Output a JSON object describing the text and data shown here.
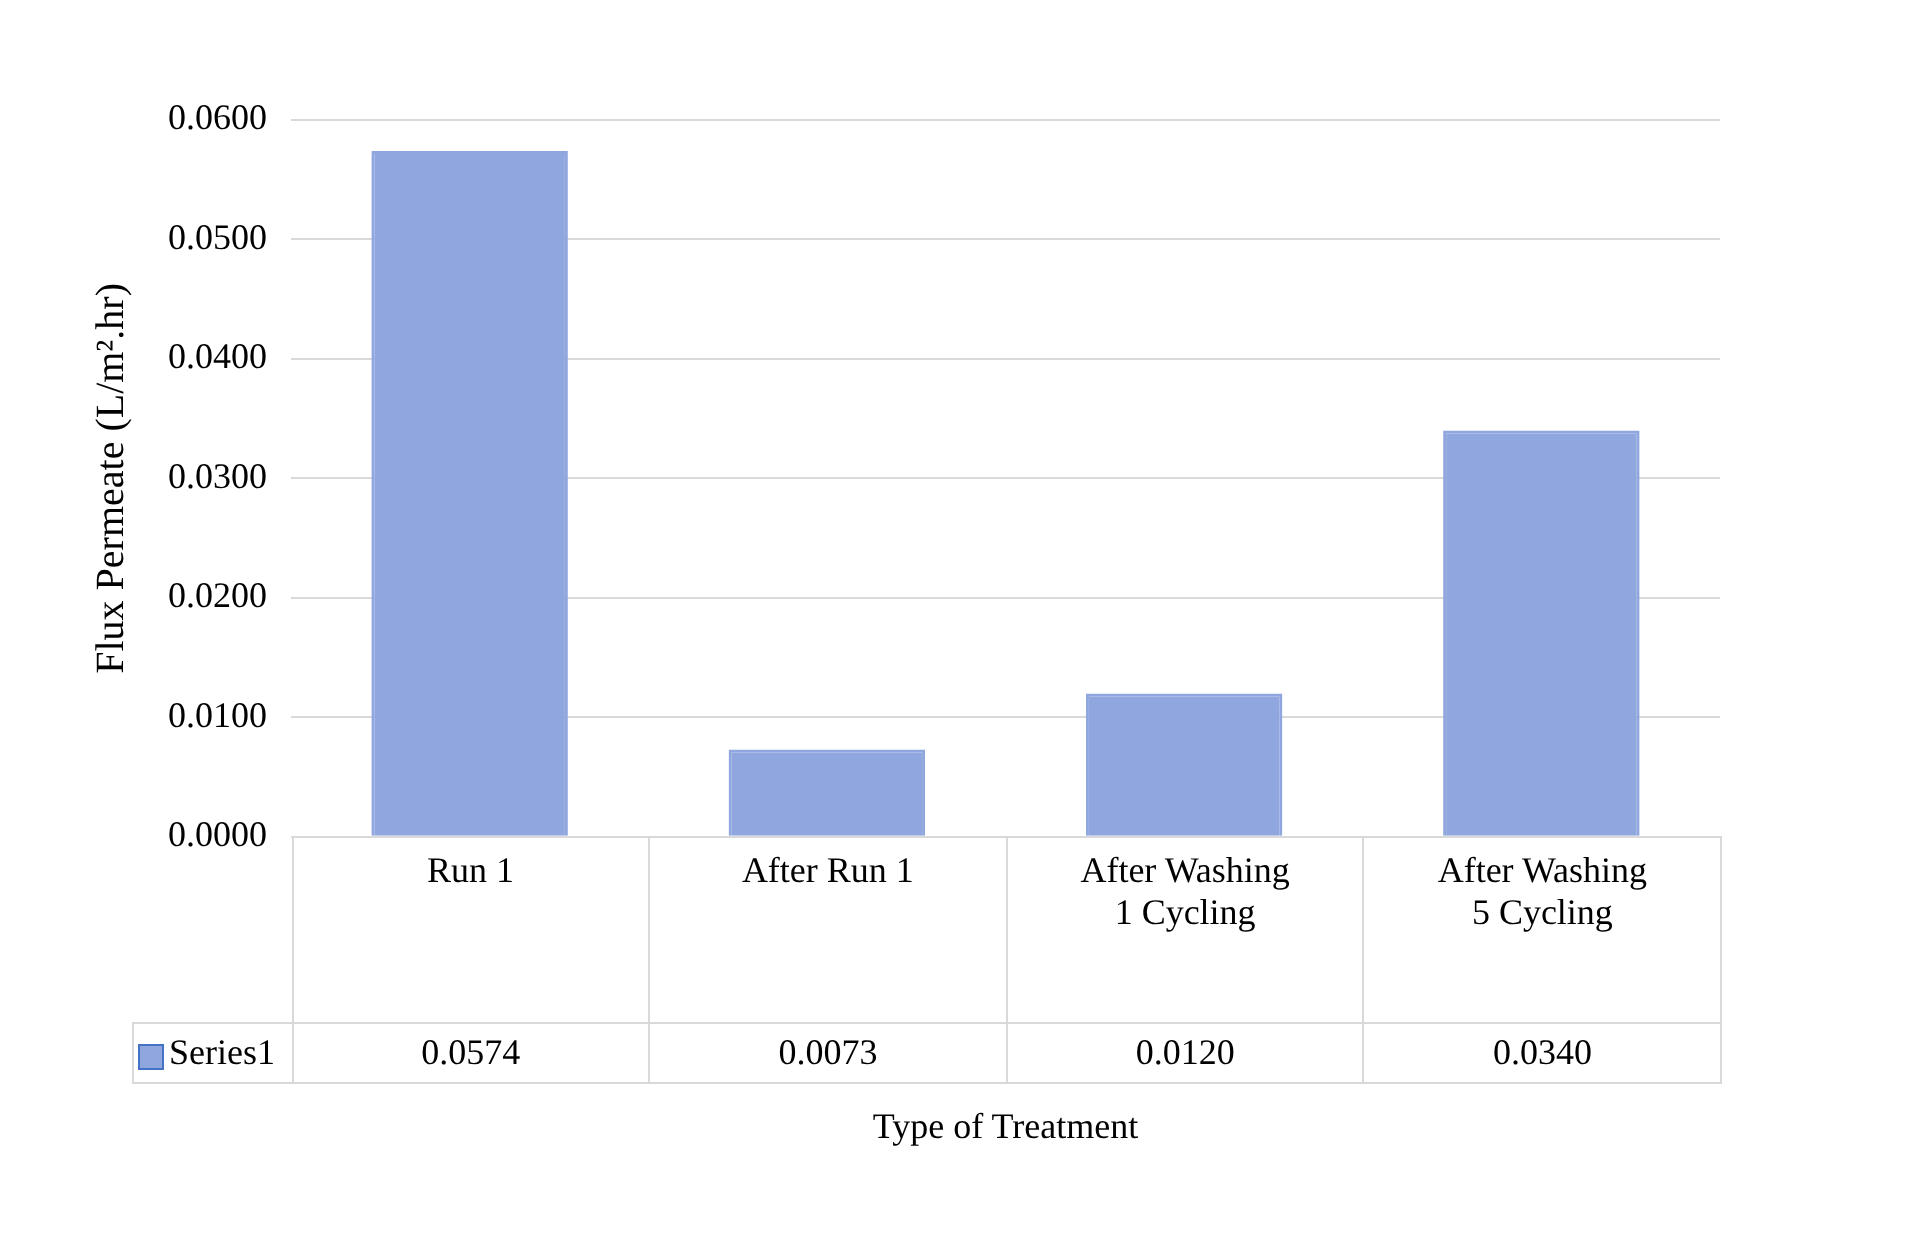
{
  "chart_data": {
    "type": "bar",
    "xlabel": "Type of Treatment",
    "ylabel": "Flux Permeate (L/m².hr)",
    "categories": [
      "Run 1",
      "After Run 1",
      "After Washing 1 Cycling",
      "After Washing  5 Cycling"
    ],
    "series": [
      {
        "name": "Series1",
        "color": "#8fa6de",
        "values": [
          0.0574,
          0.0073,
          0.012,
          0.034
        ],
        "value_labels": [
          "0.0574",
          "0.0073",
          "0.0120",
          "0.0340"
        ]
      }
    ],
    "ylim": [
      0,
      0.06
    ],
    "yticks": [
      {
        "value": 0,
        "label": "0.0000"
      },
      {
        "value": 0.01,
        "label": "0.0100"
      },
      {
        "value": 0.02,
        "label": "0.0200"
      },
      {
        "value": 0.03,
        "label": "0.0300"
      },
      {
        "value": 0.04,
        "label": "0.0400"
      },
      {
        "value": 0.05,
        "label": "0.0500"
      },
      {
        "value": 0.06,
        "label": "0.0600"
      }
    ],
    "grid": "y",
    "legend": "bottom"
  }
}
